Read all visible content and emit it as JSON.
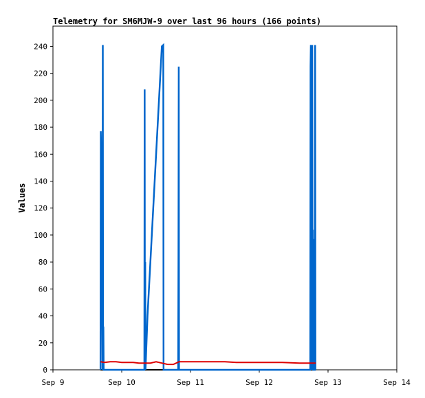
{
  "chart_data": {
    "type": "line",
    "title": "Telemetry for SM6MJW-9 over last 96 hours (166 points)",
    "xlabel": "",
    "ylabel": "Values",
    "x_tick_labels": [
      "Sep 9",
      "Sep 10",
      "Sep 11",
      "Sep 12",
      "Sep 13",
      "Sep 14"
    ],
    "x_ticks": [
      0,
      24,
      48,
      72,
      96,
      120
    ],
    "xlim": [
      0,
      120
    ],
    "y_ticks": [
      0,
      20,
      40,
      60,
      80,
      100,
      120,
      140,
      160,
      180,
      200,
      220,
      240
    ],
    "ylim": [
      0,
      255
    ],
    "grid": false,
    "series": [
      {
        "color": "#0066cc",
        "x": [
          16.6,
          16.7,
          16.8,
          16.9,
          17.0,
          17.1,
          17.2,
          17.3,
          17.4,
          17.5,
          17.6,
          17.7,
          17.8,
          17.9,
          18.0,
          31.9,
          32.0,
          32.1,
          32.2,
          32.3,
          33.0,
          34.0,
          35.0,
          36.0,
          37.0,
          38.0,
          38.5,
          38.6,
          38.7,
          43.7,
          43.8,
          43.9,
          44.0,
          89.8,
          89.9,
          90.0,
          90.1,
          90.2,
          90.3,
          90.4,
          90.5,
          90.6,
          90.7,
          90.8,
          90.9,
          91.0,
          91.1,
          91.2,
          91.3,
          91.4,
          91.5,
          91.6,
          91.7
        ],
        "y": [
          0,
          177,
          165,
          143,
          100,
          57,
          40,
          0,
          241,
          0,
          32,
          0,
          0,
          0,
          0,
          0,
          208,
          0,
          80,
          0,
          40,
          80,
          120,
          160,
          200,
          240,
          241,
          0,
          0,
          0,
          80,
          225,
          0,
          0,
          225,
          241,
          0,
          190,
          193,
          0,
          241,
          0,
          104,
          0,
          0,
          16,
          0,
          0,
          97,
          0,
          241,
          0,
          0
        ]
      },
      {
        "color": "#dd0000",
        "x": [
          16.6,
          18.0,
          20.0,
          22.0,
          24.0,
          26.0,
          28.0,
          30.0,
          32.0,
          34.0,
          36.0,
          38.0,
          40.0,
          42.0,
          44.0,
          48.0,
          52.0,
          56.0,
          60.0,
          64.0,
          72.0,
          80.0,
          86.0,
          91.7
        ],
        "y": [
          6,
          5.5,
          6,
          6,
          5.5,
          5.5,
          5.5,
          5,
          5,
          5,
          6,
          5,
          4,
          4,
          6,
          6,
          6,
          6,
          6,
          5.5,
          5.5,
          5.5,
          5,
          5
        ]
      }
    ]
  }
}
